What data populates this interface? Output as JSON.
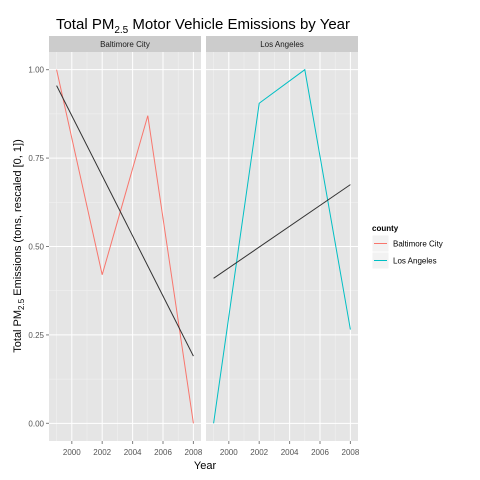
{
  "chart_data": {
    "type": "line",
    "title": {
      "prefix": "Total PM",
      "sub": "2.5",
      "suffix": " Motor Vehicle Emissions by Year"
    },
    "xlabel": "Year",
    "ylabel": {
      "prefix": "Total PM",
      "sub": "2.5",
      "suffix": " Emissions (tons, rescaled [0, 1])"
    },
    "xlim": [
      1998.5,
      2008.5
    ],
    "ylim": [
      -0.05,
      1.05
    ],
    "x_ticks": [
      2000,
      2002,
      2004,
      2006,
      2008
    ],
    "x_tick_labels": [
      "2000",
      "2002",
      "2004",
      "2006",
      "2008"
    ],
    "y_ticks": [
      0,
      0.25,
      0.5,
      0.75,
      1.0
    ],
    "y_tick_labels": [
      "0.00",
      "0.25",
      "0.50",
      "0.75",
      "1.00"
    ],
    "grid": true,
    "legend": {
      "title": "county",
      "position": "right",
      "entries": [
        {
          "label": "Baltimore City",
          "color": "#F8766D"
        },
        {
          "label": "Los Angeles",
          "color": "#00BFC4"
        }
      ]
    },
    "trend_color": "#333333",
    "panels": [
      {
        "strip": "Baltimore City",
        "color": "#F8766D",
        "x": [
          1999,
          2002,
          2005,
          2008
        ],
        "y": [
          1.0,
          0.42,
          0.87,
          0.0
        ],
        "trend": {
          "x": [
            1999,
            2008
          ],
          "y": [
            0.955,
            0.19
          ]
        }
      },
      {
        "strip": "Los Angeles",
        "color": "#00BFC4",
        "x": [
          1999,
          2002,
          2005,
          2008
        ],
        "y": [
          0.0,
          0.905,
          1.0,
          0.265
        ],
        "trend": {
          "x": [
            1999,
            2008
          ],
          "y": [
            0.41,
            0.675
          ]
        }
      }
    ]
  }
}
